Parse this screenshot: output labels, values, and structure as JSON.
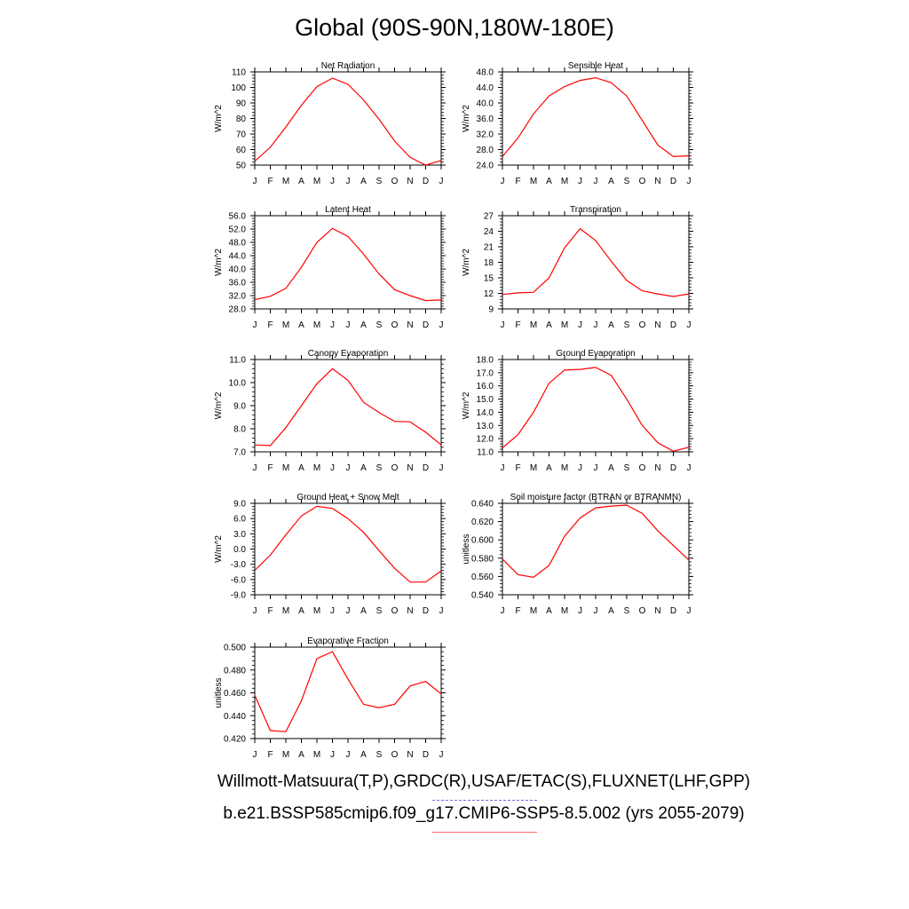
{
  "title": "Global (90S-90N,180W-180E)",
  "footer": {
    "observations": "Willmott-Matsuura(T,P),GRDC(R),USAF/ETAC(S),FLUXNET(LHF,GPP)",
    "case": "b.e21.BSSP585cmip6.f09_g17.CMIP6-SSP5-8.5.002 (yrs 2055-2079)"
  },
  "colors": {
    "series": "#ff0000",
    "obs_legend": "#6a6ae6",
    "case_legend": "#ff6a6a"
  },
  "chart_data": [
    {
      "type": "line",
      "title": "Net Radiation",
      "ylabel": "W/m^2",
      "categories": [
        "J",
        "F",
        "M",
        "A",
        "M",
        "J",
        "J",
        "A",
        "S",
        "O",
        "N",
        "D",
        "J"
      ],
      "values": [
        52.5,
        61.5,
        74.5,
        88.5,
        100.5,
        106,
        102,
        92,
        79.5,
        65.5,
        55,
        50,
        53
      ],
      "ylim": [
        50,
        110
      ],
      "yticks": [
        "50",
        "60",
        "70",
        "80",
        "90",
        "100",
        "110"
      ],
      "ytick_values": [
        50,
        60,
        70,
        80,
        90,
        100,
        110
      ]
    },
    {
      "type": "line",
      "title": "Sensible Heat",
      "ylabel": "W/m^2",
      "categories": [
        "J",
        "F",
        "M",
        "A",
        "M",
        "J",
        "J",
        "A",
        "S",
        "O",
        "N",
        "D",
        "J"
      ],
      "values": [
        26.2,
        31,
        37.2,
        41.8,
        44.2,
        45.8,
        46.5,
        45.2,
        41.8,
        35.5,
        29.2,
        26.2,
        26.4
      ],
      "ylim": [
        24,
        48
      ],
      "yticks": [
        "24.0",
        "28.0",
        "32.0",
        "36.0",
        "40.0",
        "44.0",
        "48.0"
      ],
      "ytick_values": [
        24,
        28,
        32,
        36,
        40,
        44,
        48
      ]
    },
    {
      "type": "line",
      "title": "Latent Heat",
      "ylabel": "W/m^2",
      "categories": [
        "J",
        "F",
        "M",
        "A",
        "M",
        "J",
        "J",
        "A",
        "S",
        "O",
        "N",
        "D",
        "J"
      ],
      "values": [
        30.8,
        31.8,
        34.2,
        40.5,
        48,
        52.2,
        49.8,
        44.5,
        38.5,
        33.8,
        32,
        30.5,
        30.7
      ],
      "ylim": [
        28,
        56
      ],
      "yticks": [
        "28.0",
        "32.0",
        "36.0",
        "40.0",
        "44.0",
        "48.0",
        "52.0",
        "56.0"
      ],
      "ytick_values": [
        28,
        32,
        36,
        40,
        44,
        48,
        52,
        56
      ]
    },
    {
      "type": "line",
      "title": "Transpiration",
      "ylabel": "W/m^2",
      "categories": [
        "J",
        "F",
        "M",
        "A",
        "M",
        "J",
        "J",
        "A",
        "S",
        "O",
        "N",
        "D",
        "J"
      ],
      "values": [
        11.8,
        12.1,
        12.2,
        15,
        20.8,
        24.5,
        22.2,
        18.2,
        14.5,
        12.5,
        11.9,
        11.4,
        11.9
      ],
      "ylim": [
        9,
        27
      ],
      "yticks": [
        "9",
        "12",
        "15",
        "18",
        "21",
        "24",
        "27"
      ],
      "ytick_values": [
        9,
        12,
        15,
        18,
        21,
        24,
        27
      ]
    },
    {
      "type": "line",
      "title": "Canopy Evaporation",
      "ylabel": "W/m^2",
      "categories": [
        "J",
        "F",
        "M",
        "A",
        "M",
        "J",
        "J",
        "A",
        "S",
        "O",
        "N",
        "D",
        "J"
      ],
      "values": [
        7.3,
        7.27,
        8.05,
        9.0,
        9.95,
        10.6,
        10.1,
        9.15,
        8.7,
        8.32,
        8.3,
        7.85,
        7.3
      ],
      "ylim": [
        7,
        11
      ],
      "yticks": [
        "7.0",
        "8.0",
        "9.0",
        "10.0",
        "11.0"
      ],
      "ytick_values": [
        7,
        8,
        9,
        10,
        11
      ]
    },
    {
      "type": "line",
      "title": "Ground Evaporation",
      "ylabel": "W/m^2",
      "categories": [
        "J",
        "F",
        "M",
        "A",
        "M",
        "J",
        "J",
        "A",
        "S",
        "O",
        "N",
        "D",
        "J"
      ],
      "values": [
        11.3,
        12.3,
        14.0,
        16.2,
        17.2,
        17.25,
        17.4,
        16.8,
        15.0,
        13.0,
        11.7,
        11.05,
        11.35
      ],
      "ylim": [
        11,
        18
      ],
      "yticks": [
        "11.0",
        "12.0",
        "13.0",
        "14.0",
        "15.0",
        "16.0",
        "17.0",
        "18.0"
      ],
      "ytick_values": [
        11,
        12,
        13,
        14,
        15,
        16,
        17,
        18
      ]
    },
    {
      "type": "line",
      "title": "Ground Heat + Snow Melt",
      "ylabel": "W/m^2",
      "categories": [
        "J",
        "F",
        "M",
        "A",
        "M",
        "J",
        "J",
        "A",
        "S",
        "O",
        "N",
        "D",
        "J"
      ],
      "values": [
        -4.2,
        -1.2,
        2.8,
        6.5,
        8.4,
        8.0,
        6.0,
        3.3,
        -0.3,
        -3.8,
        -6.5,
        -6.5,
        -4.3
      ],
      "ylim": [
        -9,
        9
      ],
      "yticks": [
        "-9.0",
        "-6.0",
        "-3.0",
        "0.0",
        "3.0",
        "6.0",
        "9.0"
      ],
      "ytick_values": [
        -9,
        -6,
        -3,
        0,
        3,
        6,
        9
      ]
    },
    {
      "type": "line",
      "title": "Soil moisture factor (BTRAN or BTRANMN)",
      "ylabel": "unitless",
      "categories": [
        "J",
        "F",
        "M",
        "A",
        "M",
        "J",
        "J",
        "A",
        "S",
        "O",
        "N",
        "D",
        "J"
      ],
      "values": [
        0.579,
        0.562,
        0.559,
        0.572,
        0.604,
        0.624,
        0.635,
        0.637,
        0.638,
        0.629,
        0.61,
        0.594,
        0.578
      ],
      "ylim": [
        0.54,
        0.64
      ],
      "yticks": [
        "0.540",
        "0.560",
        "0.580",
        "0.600",
        "0.620",
        "0.640"
      ],
      "ytick_values": [
        0.54,
        0.56,
        0.58,
        0.6,
        0.62,
        0.64
      ]
    },
    {
      "type": "line",
      "title": "Evaporative Fraction",
      "ylabel": "unitless",
      "categories": [
        "J",
        "F",
        "M",
        "A",
        "M",
        "J",
        "J",
        "A",
        "S",
        "O",
        "N",
        "D",
        "J"
      ],
      "values": [
        0.458,
        0.427,
        0.426,
        0.453,
        0.49,
        0.496,
        0.472,
        0.45,
        0.447,
        0.45,
        0.466,
        0.47,
        0.459
      ],
      "ylim": [
        0.42,
        0.5
      ],
      "yticks": [
        "0.420",
        "0.440",
        "0.460",
        "0.480",
        "0.500"
      ],
      "ytick_values": [
        0.42,
        0.44,
        0.46,
        0.48,
        0.5
      ]
    }
  ]
}
